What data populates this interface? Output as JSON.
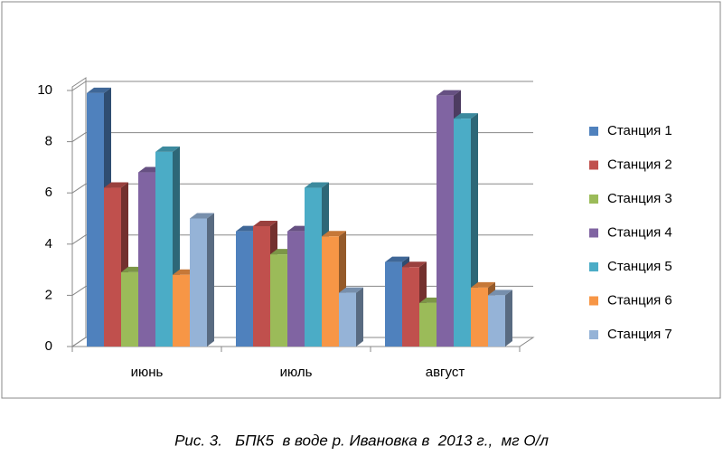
{
  "chart_data": {
    "type": "bar3d",
    "title": "Рис. 3.   БПК5  в воде р. Ивановка в  2013 г.,  мг О/л",
    "categories": [
      "июнь",
      "июль",
      "август"
    ],
    "series": [
      {
        "name": "Станция 1",
        "color": "#4f81bd",
        "values": [
          9.9,
          4.5,
          3.3
        ]
      },
      {
        "name": "Станция 2",
        "color": "#c0504d",
        "values": [
          6.2,
          4.7,
          3.1
        ]
      },
      {
        "name": "Станция 3",
        "color": "#9bbb59",
        "values": [
          2.9,
          3.6,
          1.7
        ]
      },
      {
        "name": "Станция 4",
        "color": "#8064a2",
        "values": [
          6.8,
          4.5,
          9.8
        ]
      },
      {
        "name": "Станция 5",
        "color": "#4bacc6",
        "values": [
          7.6,
          6.2,
          8.9
        ]
      },
      {
        "name": "Станция 6",
        "color": "#f79646",
        "values": [
          2.8,
          4.3,
          2.3
        ]
      },
      {
        "name": "Станция 7",
        "color": "#95b3d7",
        "values": [
          5.0,
          2.1,
          2.0
        ]
      }
    ],
    "ylim": [
      0,
      10
    ],
    "yticks": [
      0,
      2,
      4,
      6,
      8,
      10
    ],
    "grid": true,
    "legend": "right"
  }
}
